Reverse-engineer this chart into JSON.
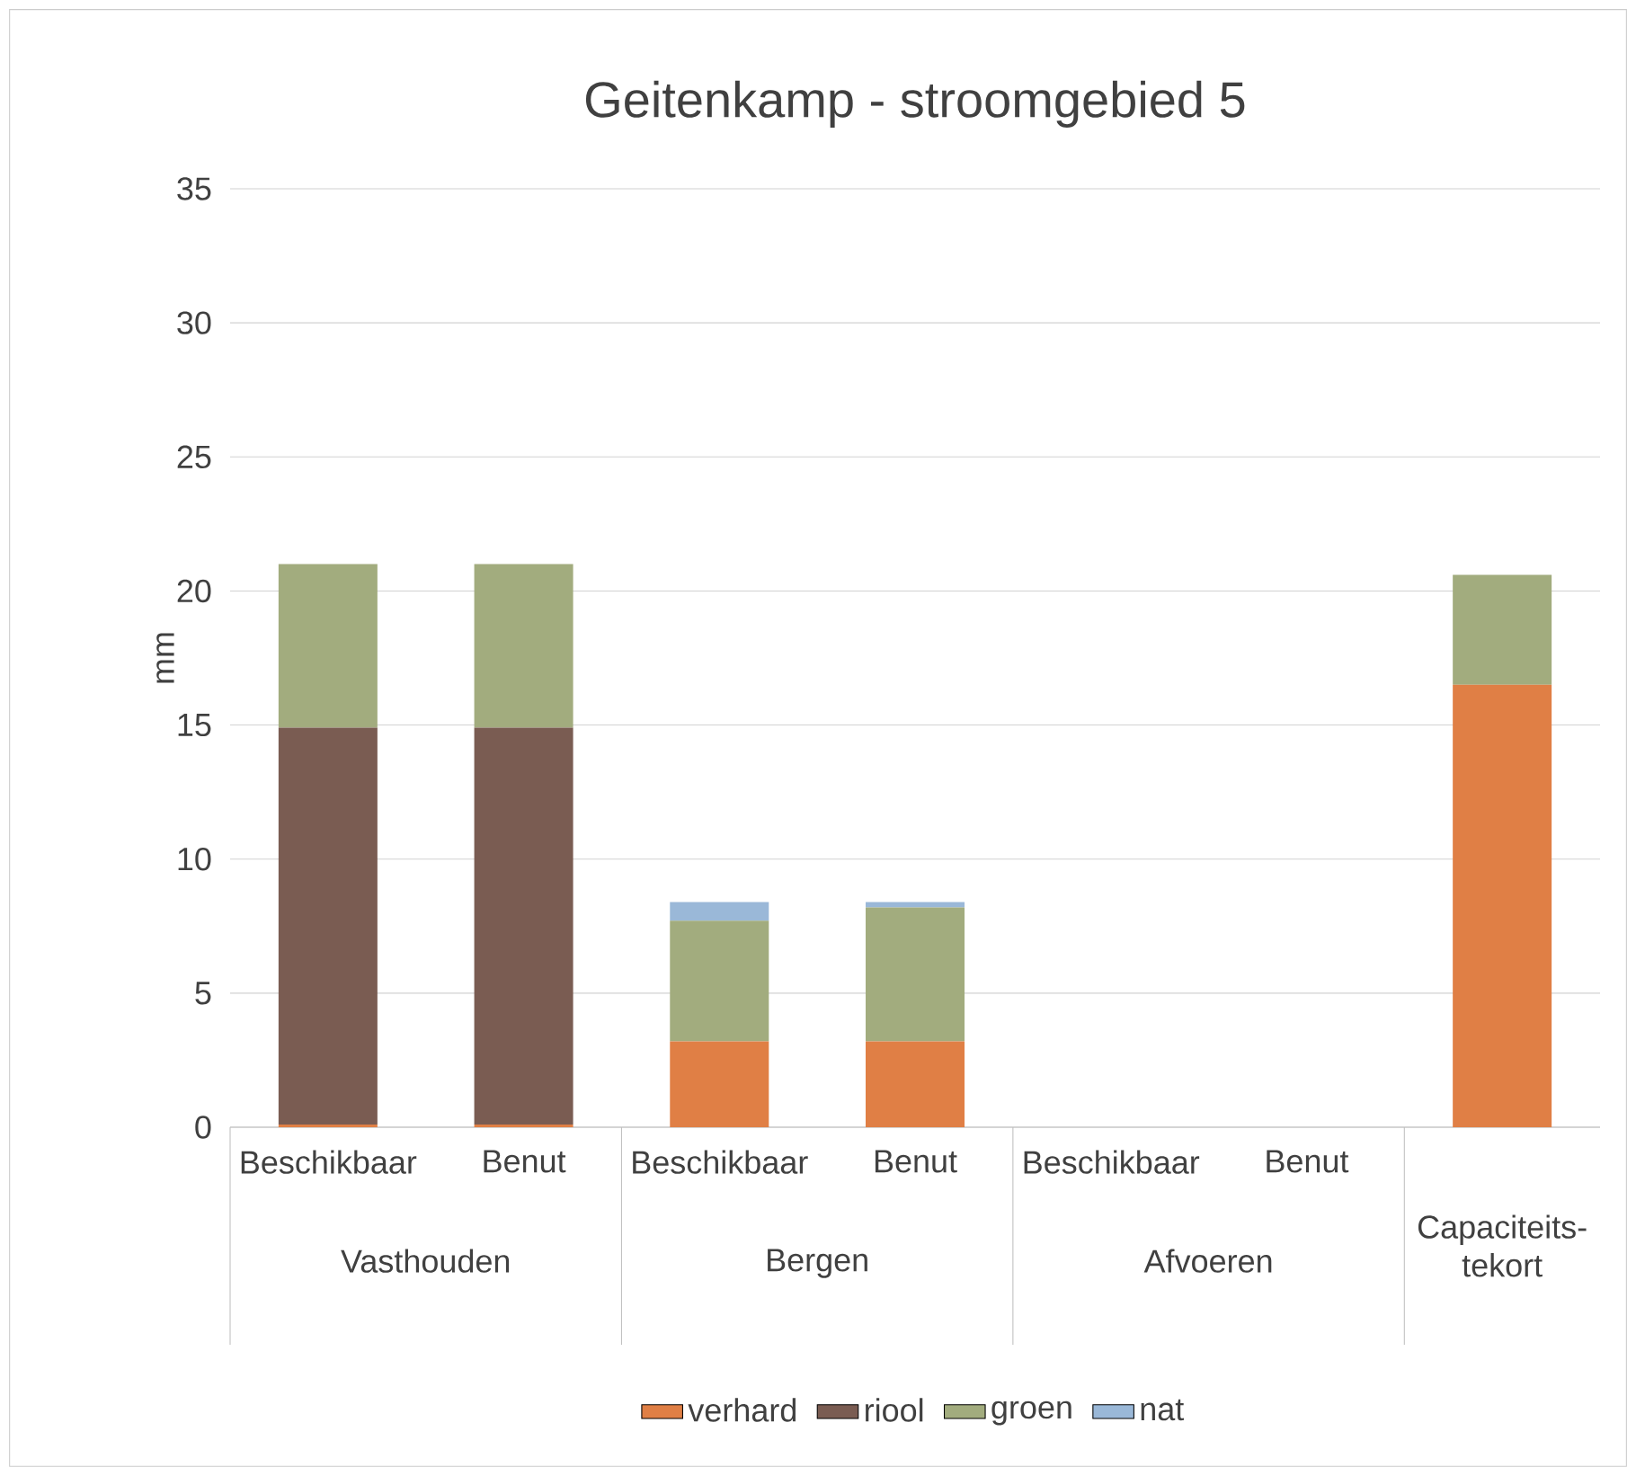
{
  "chart_data": {
    "type": "bar",
    "title": "Geitenkamp - stroomgebied 5",
    "ylabel": "mm",
    "stacked": true,
    "categories": [
      "Beschikbaar",
      "Benut",
      "Beschikbaar",
      "Benut",
      "Beschikbaar",
      "Benut",
      null
    ],
    "series": [
      {
        "name": "verhard",
        "color": "#e07f45",
        "values": [
          0.1,
          0.1,
          3.2,
          3.2,
          0,
          0,
          16.5
        ]
      },
      {
        "name": "riool",
        "color": "#7a5c52",
        "values": [
          14.8,
          14.8,
          0,
          0,
          0,
          0,
          0
        ]
      },
      {
        "name": "groen",
        "color": "#a2ac7e",
        "values": [
          6.1,
          6.1,
          4.5,
          5.0,
          0,
          0,
          4.1
        ]
      },
      {
        "name": "nat",
        "color": "#9ab8d8",
        "values": [
          0,
          0,
          0.7,
          0.2,
          0,
          0,
          0
        ]
      }
    ],
    "ylim": [
      0,
      35
    ],
    "yticks": [
      0,
      5,
      10,
      15,
      20,
      25,
      30,
      35
    ],
    "grid": "y",
    "legend": "bottom",
    "annotations": [
      "Vasthouden",
      "Bergen",
      "Afvoeren",
      "Capaciteits- tekort"
    ]
  }
}
